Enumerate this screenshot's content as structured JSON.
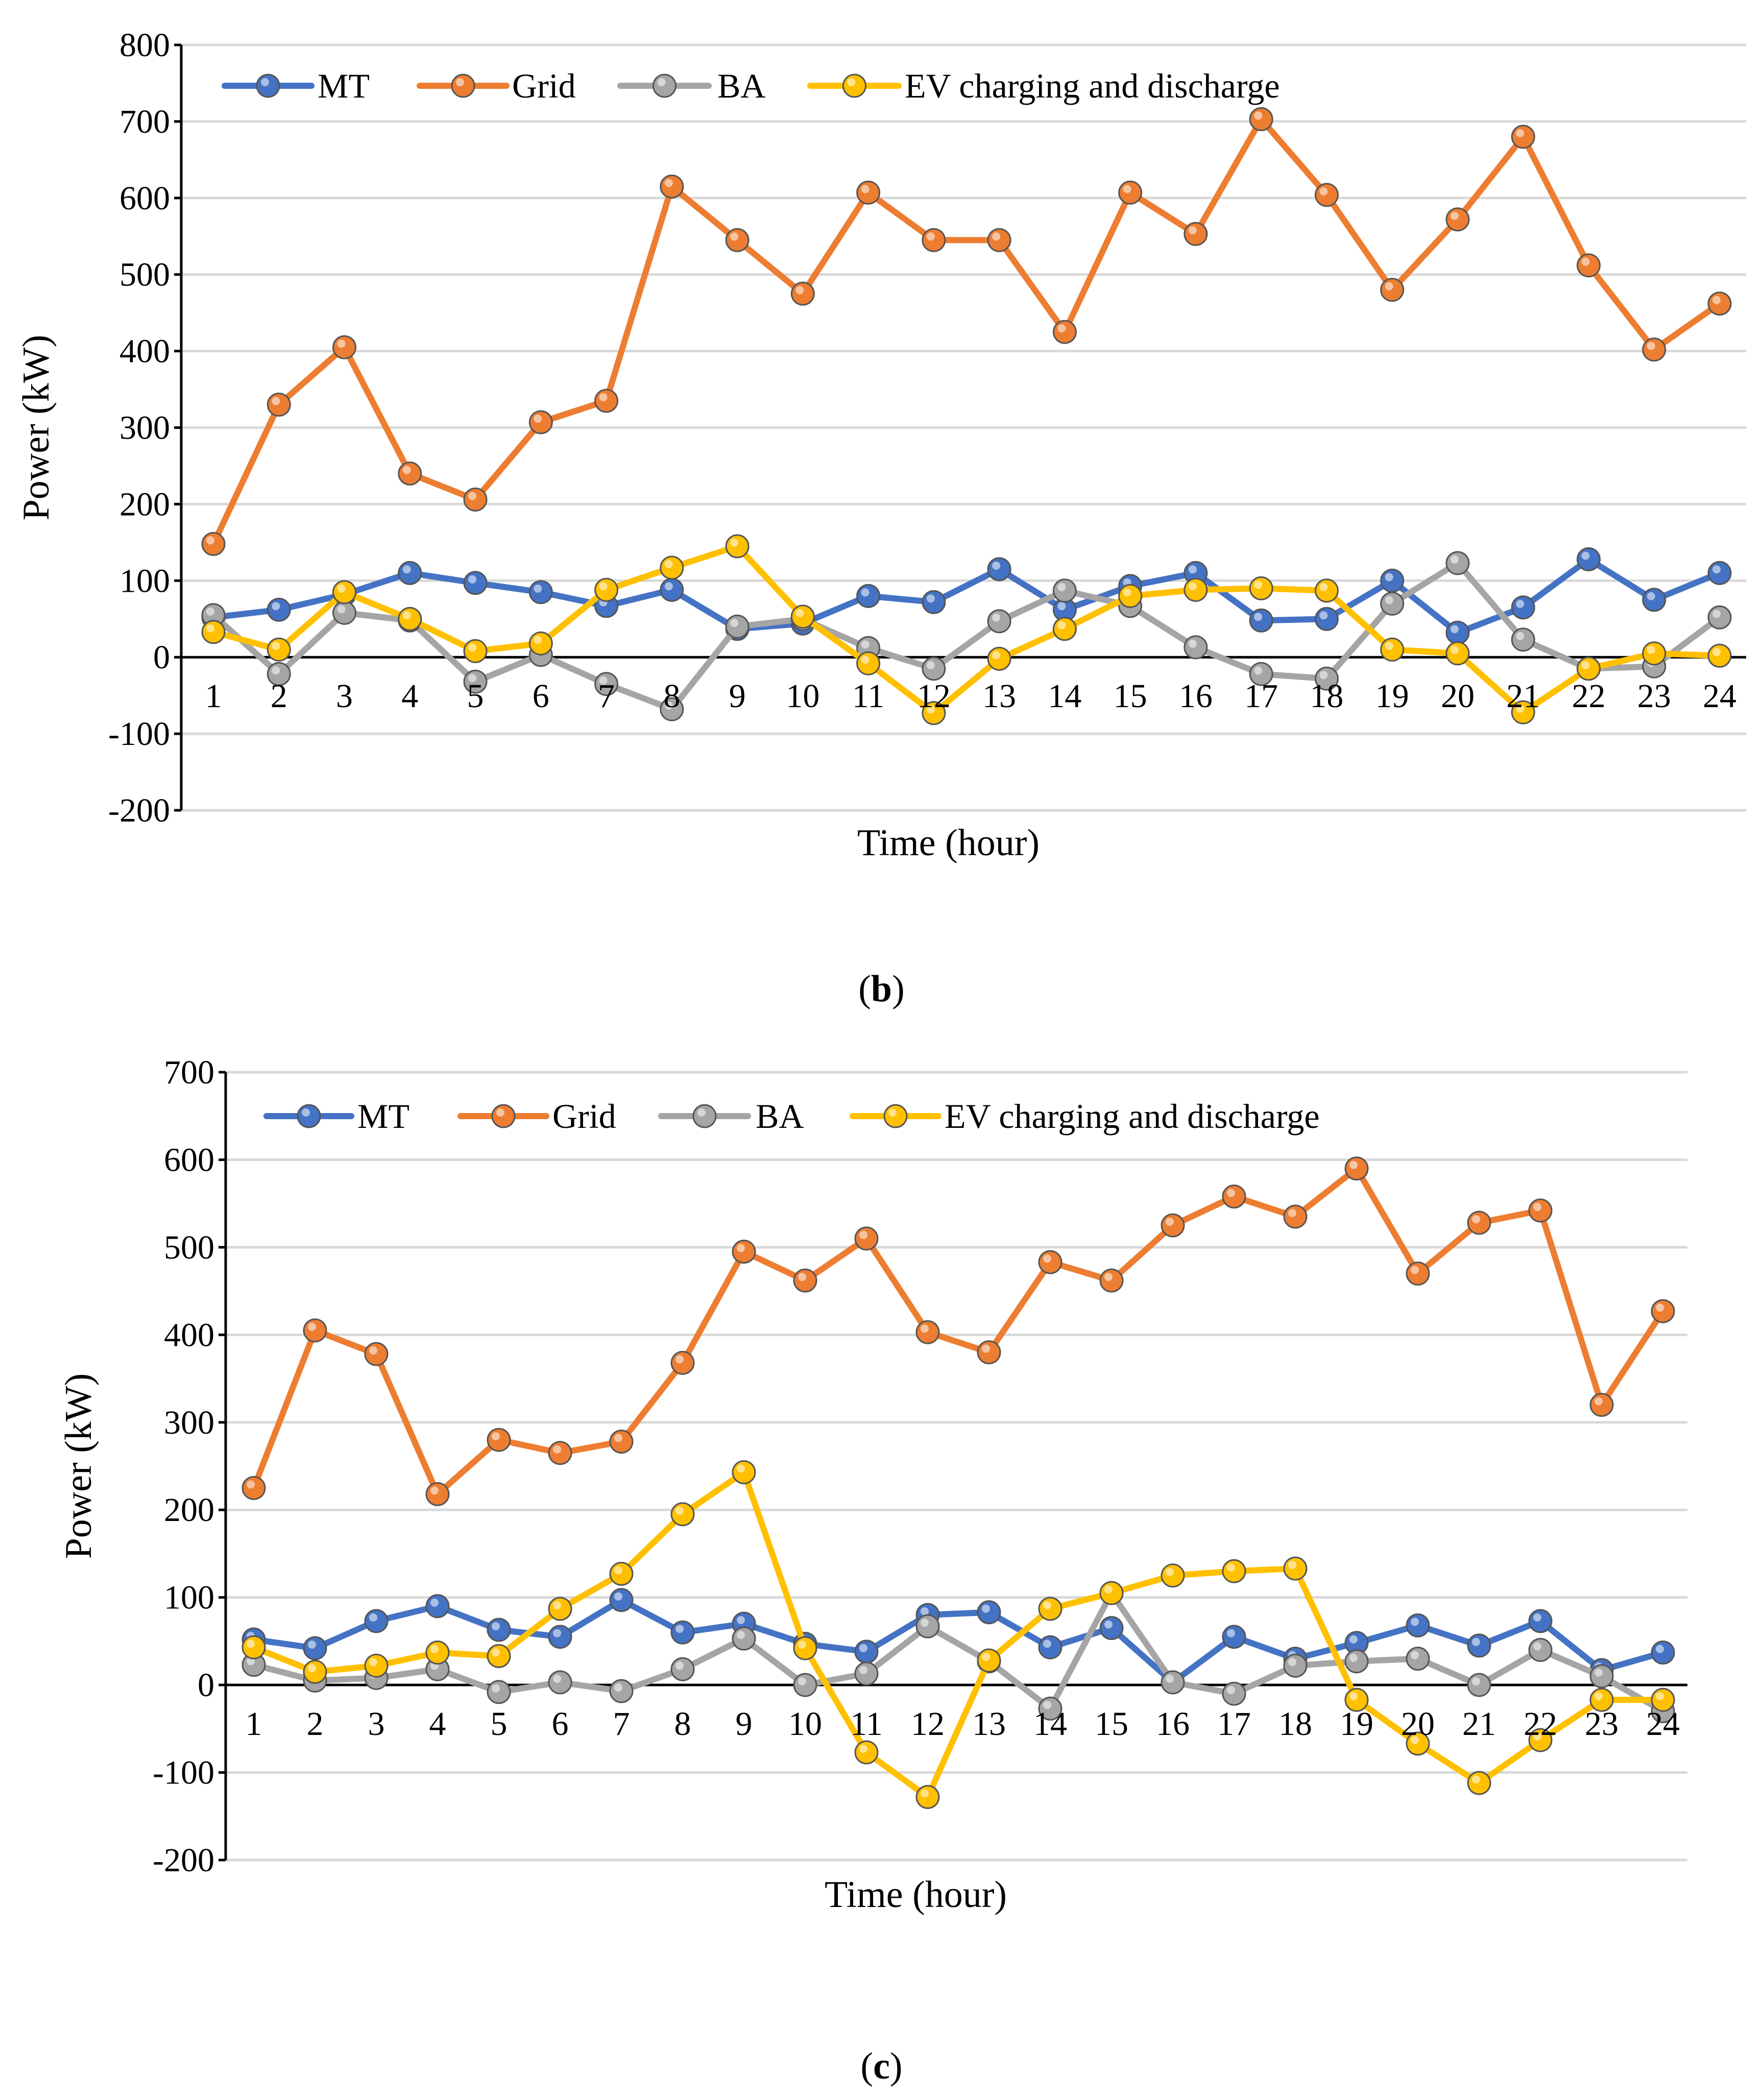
{
  "colors": {
    "MT": "#4472C4",
    "Grid": "#ED7D31",
    "BA": "#A5A5A5",
    "EV charging and discharge": "#FFC000",
    "gridline": "#D9D9D9",
    "axis": "#000000"
  },
  "chart_data": [
    {
      "type": "line",
      "panel": "b",
      "panel_label": "b",
      "xlabel": "Time (hour)",
      "ylabel": "Power (kW)",
      "ylim": [
        -200,
        800
      ],
      "yticks": [
        -200,
        -100,
        0,
        100,
        200,
        300,
        400,
        500,
        600,
        700,
        800
      ],
      "grid": true,
      "legend": "top-left",
      "categories": [
        "1",
        "2",
        "3",
        "4",
        "5",
        "6",
        "7",
        "8",
        "9",
        "10",
        "11",
        "12",
        "13",
        "14",
        "15",
        "16",
        "17",
        "18",
        "19",
        "20",
        "21",
        "22",
        "23",
        "24"
      ],
      "series": [
        {
          "name": "MT",
          "values": [
            52,
            62,
            82,
            110,
            97,
            85,
            67,
            88,
            37,
            44,
            80,
            72,
            115,
            62,
            93,
            110,
            48,
            50,
            100,
            32,
            65,
            128,
            75,
            110
          ]
        },
        {
          "name": "Grid",
          "values": [
            148,
            330,
            405,
            240,
            206,
            307,
            335,
            615,
            545,
            475,
            607,
            545,
            545,
            425,
            607,
            553,
            703,
            604,
            480,
            572,
            680,
            512,
            402,
            462
          ]
        },
        {
          "name": "BA",
          "values": [
            55,
            -22,
            58,
            48,
            -32,
            3,
            -35,
            -68,
            40,
            50,
            12,
            -15,
            47,
            87,
            67,
            13,
            -22,
            -28,
            70,
            123,
            23,
            -15,
            -12,
            52
          ]
        },
        {
          "name": "EV charging and discharge",
          "values": [
            33,
            10,
            85,
            50,
            8,
            18,
            88,
            117,
            145,
            53,
            -8,
            -73,
            -2,
            37,
            80,
            88,
            90,
            87,
            10,
            5,
            -72,
            -15,
            5,
            2
          ]
        }
      ]
    },
    {
      "type": "line",
      "panel": "c",
      "panel_label": "c",
      "xlabel": "Time (hour)",
      "ylabel": "Power (kW)",
      "ylim": [
        -200,
        700
      ],
      "yticks": [
        -200,
        -100,
        0,
        100,
        200,
        300,
        400,
        500,
        600,
        700
      ],
      "grid": true,
      "legend": "top-left",
      "categories": [
        "1",
        "2",
        "3",
        "4",
        "5",
        "6",
        "7",
        "8",
        "9",
        "10",
        "11",
        "12",
        "13",
        "14",
        "15",
        "16",
        "17",
        "18",
        "19",
        "20",
        "21",
        "22",
        "23",
        "24"
      ],
      "series": [
        {
          "name": "MT",
          "values": [
            52,
            42,
            73,
            90,
            63,
            55,
            97,
            60,
            70,
            47,
            38,
            80,
            83,
            43,
            65,
            3,
            55,
            30,
            48,
            68,
            45,
            73,
            17,
            37
          ]
        },
        {
          "name": "Grid",
          "values": [
            225,
            405,
            378,
            218,
            280,
            265,
            278,
            368,
            495,
            462,
            510,
            403,
            380,
            483,
            462,
            525,
            558,
            535,
            590,
            470,
            528,
            542,
            320,
            427
          ]
        },
        {
          "name": "BA",
          "values": [
            23,
            5,
            8,
            18,
            -8,
            3,
            -7,
            18,
            53,
            0,
            13,
            67,
            27,
            -27,
            105,
            3,
            -10,
            22,
            27,
            30,
            0,
            40,
            10,
            -30
          ]
        },
        {
          "name": "EV charging and discharge",
          "values": [
            43,
            15,
            22,
            37,
            33,
            87,
            127,
            195,
            243,
            42,
            -77,
            -128,
            28,
            87,
            105,
            125,
            130,
            133,
            -17,
            -67,
            -112,
            -63,
            -17,
            -17
          ]
        }
      ]
    }
  ]
}
